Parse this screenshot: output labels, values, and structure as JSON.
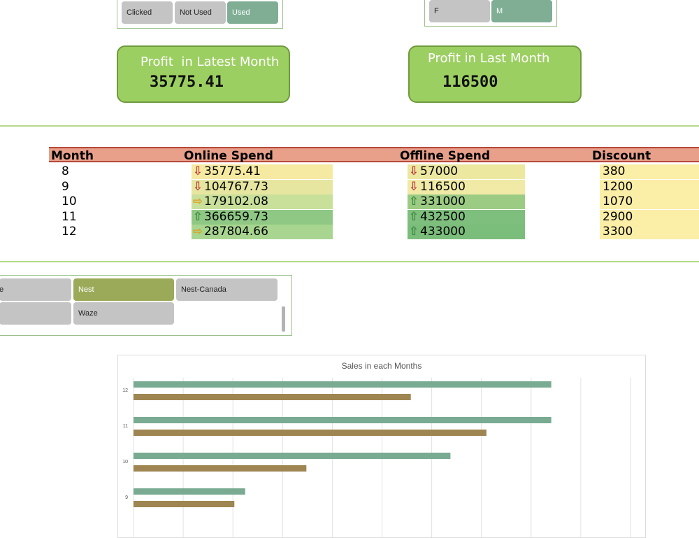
{
  "slicer_usage": {
    "items": [
      {
        "label": "Clicked",
        "selected": false
      },
      {
        "label": "Not Used",
        "selected": false
      },
      {
        "label": "Used",
        "selected": true
      }
    ]
  },
  "slicer_gender": {
    "items": [
      {
        "label": "F",
        "selected": false
      },
      {
        "label": "M",
        "selected": true
      }
    ]
  },
  "kpi_latest": {
    "label": "Profit  in Latest Month",
    "value": "35775.41"
  },
  "kpi_last": {
    "label": "Profit in Last Month",
    "value": "116500"
  },
  "table": {
    "headers": {
      "month": "Month",
      "online": "Online Spend",
      "offline": "Offline Spend",
      "discount": "Discount"
    },
    "rows": [
      {
        "month": "8",
        "online": "35775.41",
        "online_trend": "down",
        "offline": "57000",
        "offline_trend": "down",
        "discount": "380"
      },
      {
        "month": "9",
        "online": "104767.73",
        "online_trend": "down",
        "offline": "116500",
        "offline_trend": "down",
        "discount": "1200"
      },
      {
        "month": "10",
        "online": "179102.08",
        "online_trend": "flat",
        "offline": "331000",
        "offline_trend": "up",
        "discount": "1070"
      },
      {
        "month": "11",
        "online": "366659.73",
        "online_trend": "up",
        "offline": "432500",
        "offline_trend": "up",
        "discount": "2900"
      },
      {
        "month": "12",
        "online": "287804.66",
        "online_trend": "flat",
        "offline": "433000",
        "offline_trend": "up",
        "discount": "3300"
      }
    ],
    "colors": {
      "online": [
        "#f6eaa2",
        "#e6e6a0",
        "#c8e09a",
        "#8fc884",
        "#a8d690"
      ],
      "offline": [
        "#ece8a0",
        "#f0eaa6",
        "#9ccb84",
        "#7fbf7e",
        "#7bbd7b"
      ],
      "discount": "#fbeea6"
    }
  },
  "slicer_brand": {
    "items": [
      {
        "label": "e",
        "selected": false
      },
      {
        "label": "Nest",
        "selected": true
      },
      {
        "label": "Nest-Canada",
        "selected": false
      },
      {
        "label": "",
        "selected": false
      },
      {
        "label": "Waze",
        "selected": false
      }
    ]
  },
  "chart_data": {
    "type": "bar",
    "orientation": "horizontal",
    "title": "Sales in each Months",
    "categories": [
      "9",
      "10",
      "11",
      "12"
    ],
    "series": [
      {
        "color": "#78ab91",
        "values": [
          155000,
          440000,
          580000,
          580000
        ]
      },
      {
        "color": "#9e8551",
        "values": [
          140000,
          240000,
          490000,
          385000
        ]
      }
    ],
    "xlim": [
      0,
      690000
    ],
    "grid": true
  }
}
